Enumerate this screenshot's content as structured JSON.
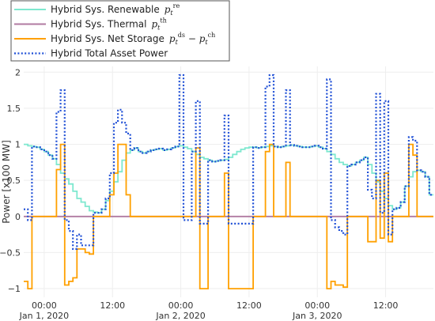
{
  "chart_data": {
    "type": "line",
    "title": "",
    "xlabel": "",
    "ylabel": "Power [x100 MW]",
    "ylim": [
      -1.12,
      2.08
    ],
    "xlim": [
      -3,
      57
    ],
    "grid": true,
    "legend_position": "top-left",
    "x_ticks": [
      {
        "hour": 0,
        "line1": "00:00",
        "line2": "Jan 1, 2020"
      },
      {
        "hour": 10,
        "line1": "12:00",
        "line2": ""
      },
      {
        "hour": 20,
        "line1": "00:00",
        "line2": "Jan 2, 2020"
      },
      {
        "hour": 30,
        "line1": "12:00",
        "line2": ""
      },
      {
        "hour": 40,
        "line1": "00:00",
        "line2": "Jan 3, 2020"
      },
      {
        "hour": 50,
        "line1": "12:00",
        "line2": ""
      }
    ],
    "y_ticks": [
      {
        "value": -1,
        "label": "−1"
      },
      {
        "value": -0.5,
        "label": "−0.5"
      },
      {
        "value": 0,
        "label": "0"
      },
      {
        "value": 0.5,
        "label": "0.5"
      },
      {
        "value": 1,
        "label": "1"
      },
      {
        "value": 1.5,
        "label": "1.5"
      },
      {
        "value": 2,
        "label": "2"
      }
    ],
    "series": [
      {
        "name": "Hybrid Sys. Renewable",
        "legend_math": {
          "sup": "re",
          "sub": "t"
        },
        "color": "#7ee8cf",
        "dash": "solid",
        "step_values": [
          1,
          0.98,
          0.97,
          0.96,
          0.93,
          0.9,
          0.85,
          0.8,
          0.72,
          0.6,
          0.52,
          0.45,
          0.35,
          0.25,
          0.2,
          0.14,
          0.08,
          0.06,
          0.05,
          0.1,
          0.22,
          0.35,
          0.48,
          0.62,
          0.78,
          0.88,
          0.92,
          0.95,
          0.9,
          0.88,
          0.9,
          0.92,
          0.93,
          0.94,
          0.92,
          0.93,
          0.95,
          0.97,
          0.98,
          0.96,
          0.94,
          0.9,
          0.86,
          0.82,
          0.8,
          0.78,
          0.76,
          0.77,
          0.78,
          0.79,
          0.82,
          0.86,
          0.9,
          0.93,
          0.95,
          0.96,
          0.96,
          0.95,
          0.96,
          0.97,
          0.98,
          0.97,
          0.96,
          0.97,
          0.98,
          0.99,
          0.98,
          0.97,
          0.96,
          0.96,
          0.97,
          0.98,
          0.96,
          0.94,
          0.9,
          0.86,
          0.8,
          0.75,
          0.72,
          0.7,
          0.72,
          0.75,
          0.78,
          0.82,
          0.72,
          0.6,
          0.48,
          0.35,
          0.25,
          0.15,
          0.1,
          0.12,
          0.2,
          0.42,
          0.55,
          0.62,
          0.64,
          0.62,
          0.55,
          0.3
        ]
      },
      {
        "name": "Hybrid Sys. Thermal",
        "legend_math": {
          "sup": "th",
          "sub": "t"
        },
        "color": "#b07aa1",
        "dash": "solid",
        "step_values": [
          0,
          0,
          0,
          0,
          0,
          0,
          0,
          0,
          0,
          0,
          0,
          0,
          0,
          0,
          0,
          0,
          0,
          0,
          0,
          0,
          0,
          0,
          0,
          0,
          0,
          0,
          0,
          0,
          0,
          0,
          0,
          0,
          0,
          0,
          0,
          0,
          0,
          0,
          0,
          0,
          0,
          0,
          0,
          0,
          0,
          0,
          0,
          0,
          0,
          0,
          0,
          0,
          0,
          0,
          0,
          0,
          0,
          0,
          0,
          0,
          0,
          0,
          0,
          0,
          0,
          0,
          0,
          0,
          0,
          0,
          0,
          0,
          0,
          0,
          0,
          0,
          0,
          0,
          0,
          0,
          0,
          0,
          0,
          0,
          0,
          0,
          0,
          0,
          0,
          0,
          0,
          0,
          0,
          0,
          0,
          0,
          0,
          0,
          0,
          0
        ]
      },
      {
        "name": "Hybrid Sys. Net Storage",
        "legend_math": {
          "pre": "ds",
          "post": "ch",
          "sub": "t"
        },
        "color": "#ffa000",
        "dash": "solid",
        "step_values": [
          -0.9,
          -1,
          0,
          0,
          0,
          0,
          0,
          0,
          0.65,
          1,
          -0.95,
          -0.9,
          -0.85,
          -0.45,
          -0.45,
          -0.5,
          -0.52,
          0,
          0,
          0,
          0,
          0.3,
          0.6,
          1,
          1,
          0.3,
          0,
          0,
          0,
          0,
          0,
          0,
          0,
          0,
          0,
          0,
          0,
          0,
          0,
          0,
          0,
          0,
          0.95,
          -1,
          -1,
          0,
          0,
          0,
          0,
          0.6,
          -1,
          -1,
          -1,
          -1,
          -1,
          -1,
          0,
          0,
          0,
          0.9,
          1,
          0,
          0,
          0,
          0.75,
          0,
          0,
          0,
          0,
          0,
          0,
          0,
          0,
          0,
          -1,
          -0.9,
          -0.95,
          -0.95,
          -0.98,
          0,
          0,
          0,
          0,
          0,
          -0.35,
          -0.35,
          0.5,
          -0.3,
          0.6,
          -0.35,
          0,
          0,
          0,
          0,
          1,
          0.85,
          0,
          0,
          0,
          0
        ]
      },
      {
        "name": "Hybrid Total Asset Power",
        "legend_math": null,
        "color": "#1f4fd6",
        "dash": "dotted",
        "step_values": [
          0.1,
          -0.05,
          0.97,
          0.96,
          0.93,
          0.9,
          0.85,
          0.8,
          1.45,
          1.75,
          -0.05,
          -0.2,
          -0.45,
          -0.25,
          -0.4,
          -0.4,
          -0.4,
          0.05,
          0.05,
          0.1,
          0.25,
          0.6,
          1.3,
          1.48,
          1.3,
          1.15,
          0.92,
          0.95,
          0.9,
          0.88,
          0.9,
          0.92,
          0.93,
          0.94,
          0.92,
          0.93,
          0.95,
          0.97,
          1.96,
          -0.05,
          -0.05,
          0.9,
          1.6,
          -0.1,
          -0.1,
          0.78,
          0.76,
          0.77,
          0.78,
          1.4,
          -0.1,
          -0.1,
          -0.1,
          -0.1,
          -0.1,
          -0.1,
          0.96,
          0.95,
          0.96,
          1.8,
          1.96,
          0.97,
          0.96,
          0.97,
          1.75,
          0.99,
          0.98,
          0.97,
          0.96,
          0.96,
          0.97,
          0.98,
          0.96,
          0.94,
          1.9,
          -0.05,
          -0.15,
          -0.2,
          -0.25,
          0.7,
          0.72,
          0.75,
          0.78,
          0.82,
          0.37,
          0.25,
          1.7,
          0.05,
          1.6,
          -0.25,
          0.1,
          0.12,
          0.2,
          0.42,
          1.1,
          1.05,
          0.64,
          0.62,
          0.55,
          0.3
        ]
      }
    ]
  }
}
